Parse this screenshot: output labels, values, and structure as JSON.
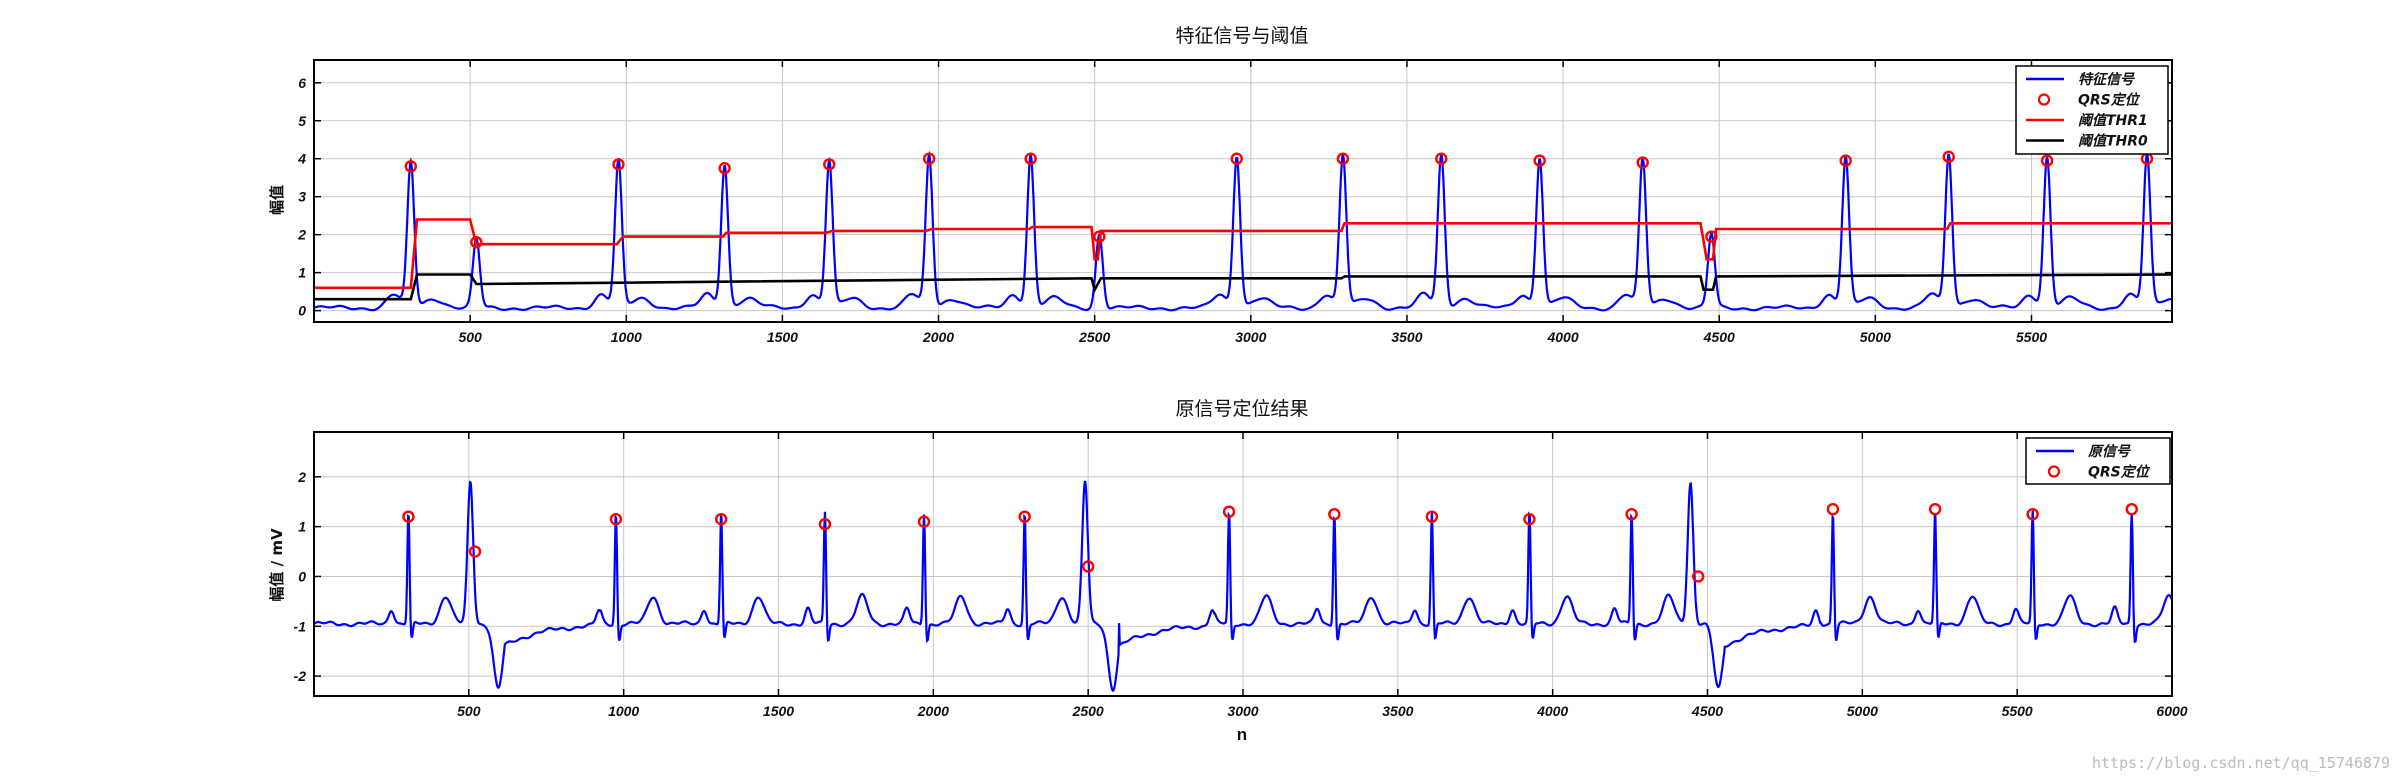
{
  "chart_data": [
    {
      "type": "line",
      "title": "特征信号与阈值",
      "xlabel": "",
      "ylabel": "幅值",
      "xlim": [
        0,
        5950
      ],
      "ylim": [
        -0.3,
        6.6
      ],
      "xticks": [
        500,
        1000,
        1500,
        2000,
        2500,
        3000,
        3500,
        4000,
        4500,
        5000,
        5500
      ],
      "yticks": [
        0,
        1,
        2,
        3,
        4,
        5,
        6
      ],
      "grid": true,
      "legend": "top-right",
      "peaks": [
        [
          310,
          3.8
        ],
        [
          520,
          1.8
        ],
        [
          975,
          3.85
        ],
        [
          1315,
          3.75
        ],
        [
          1650,
          3.85
        ],
        [
          1970,
          4.0
        ],
        [
          2295,
          4.0
        ],
        [
          2515,
          1.95
        ],
        [
          2955,
          4.0
        ],
        [
          3295,
          4.0
        ],
        [
          3610,
          4.0
        ],
        [
          3925,
          3.95
        ],
        [
          4255,
          3.9
        ],
        [
          4475,
          1.95
        ],
        [
          4905,
          3.95
        ],
        [
          5235,
          4.05
        ],
        [
          5550,
          3.95
        ],
        [
          5870,
          4.0
        ]
      ],
      "series": [
        {
          "name": "特征信号",
          "color": "#0000ff",
          "style": "line"
        },
        {
          "name": "QRS定位",
          "color": "#ff0000",
          "style": "circle",
          "x": [
            310,
            520,
            975,
            1315,
            1650,
            1970,
            2295,
            2515,
            2955,
            3295,
            3610,
            3925,
            4255,
            4475,
            4905,
            5235,
            5550,
            5870
          ],
          "y": [
            3.8,
            1.8,
            3.85,
            3.75,
            3.85,
            4.0,
            4.0,
            1.95,
            4.0,
            4.0,
            4.0,
            3.95,
            3.9,
            1.95,
            3.95,
            4.05,
            3.95,
            4.0
          ]
        },
        {
          "name": "阈值THR1",
          "color": "#ff0000",
          "style": "step",
          "x": [
            0,
            310,
            330,
            500,
            520,
            970,
            990,
            1310,
            1320,
            1640,
            1660,
            1960,
            1980,
            2290,
            2300,
            2490,
            2500,
            2510,
            2520,
            2950,
            2960,
            3290,
            3300,
            4440,
            4460,
            4480,
            4490,
            5230,
            5240,
            5950
          ],
          "y": [
            0.6,
            0.6,
            2.4,
            2.4,
            1.75,
            1.75,
            1.95,
            1.95,
            2.05,
            2.05,
            2.1,
            2.1,
            2.15,
            2.15,
            2.2,
            2.2,
            1.35,
            1.35,
            2.1,
            2.1,
            2.1,
            2.1,
            2.3,
            2.3,
            1.35,
            1.35,
            2.15,
            2.15,
            2.3,
            2.3
          ]
        },
        {
          "name": "阈值THR0",
          "color": "#000000",
          "style": "step",
          "x": [
            0,
            310,
            330,
            500,
            520,
            2490,
            2500,
            2520,
            3290,
            3300,
            4440,
            4450,
            4480,
            4490,
            5950
          ],
          "y": [
            0.3,
            0.3,
            0.95,
            0.95,
            0.7,
            0.85,
            0.55,
            0.85,
            0.85,
            0.9,
            0.9,
            0.55,
            0.55,
            0.9,
            0.95
          ]
        }
      ]
    },
    {
      "type": "line",
      "title": "原信号定位结果",
      "xlabel": "n",
      "ylabel": "幅值 / mV",
      "xlim": [
        0,
        6000
      ],
      "ylim": [
        -2.4,
        2.9
      ],
      "xticks": [
        500,
        1000,
        1500,
        2000,
        2500,
        3000,
        3500,
        4000,
        4500,
        5000,
        5500,
        6000
      ],
      "yticks": [
        -2,
        -1,
        0,
        1,
        2
      ],
      "grid": true,
      "legend": "top-right",
      "series": [
        {
          "name": "原信号",
          "color": "#0000ff",
          "style": "line"
        },
        {
          "name": "QRS定位",
          "color": "#ff0000",
          "style": "circle",
          "x": [
            305,
            520,
            975,
            1315,
            1650,
            1970,
            2295,
            2500,
            2955,
            3295,
            3610,
            3925,
            4255,
            4470,
            4905,
            5235,
            5550,
            5870
          ],
          "y": [
            1.2,
            0.5,
            1.15,
            1.15,
            1.05,
            1.1,
            1.2,
            0.2,
            1.3,
            1.25,
            1.2,
            1.15,
            1.25,
            0.0,
            1.35,
            1.35,
            1.25,
            1.35
          ]
        }
      ]
    }
  ],
  "watermark": "https://blog.csdn.net/qq_15746879"
}
